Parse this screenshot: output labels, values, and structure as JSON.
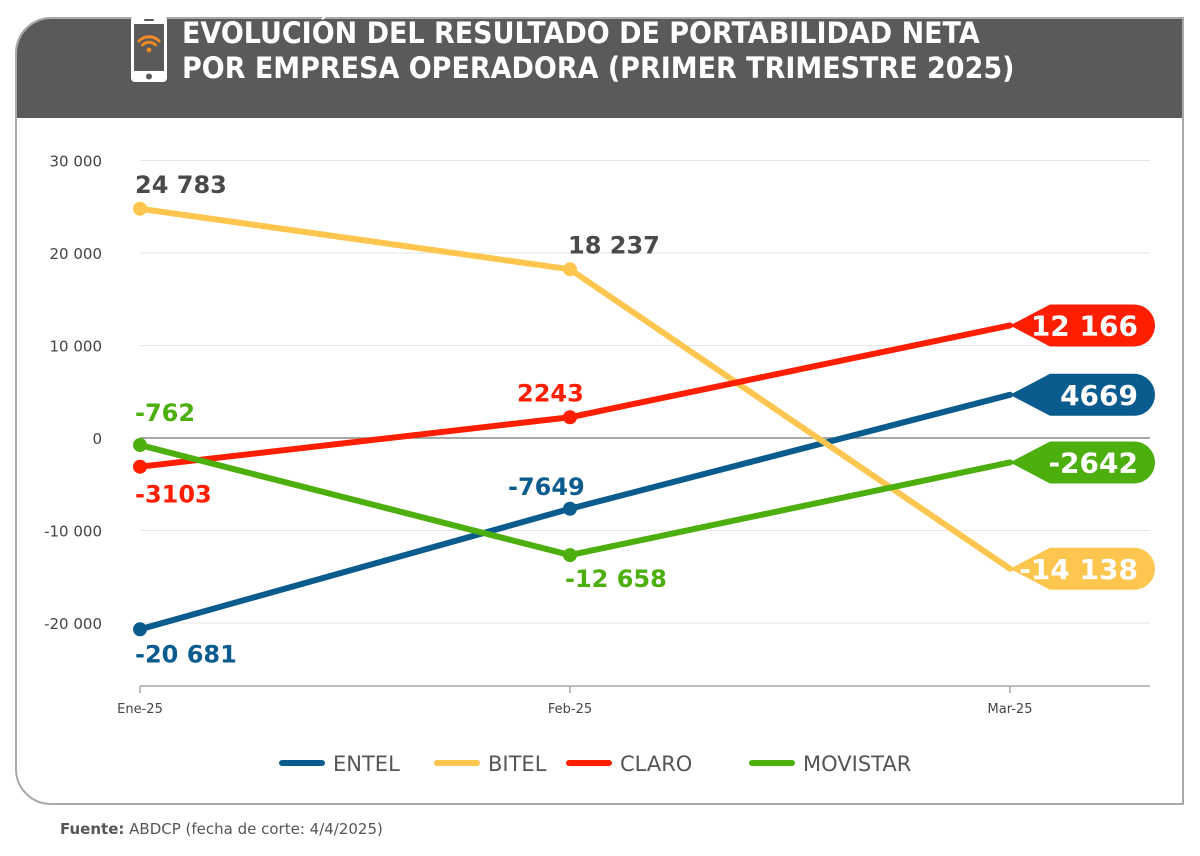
{
  "header": {
    "icon": "smartphone-wifi-icon",
    "title_line1": "EVOLUCIÓN DEL RESULTADO DE PORTABILIDAD NETA",
    "title_line2": "POR EMPRESA OPERADORA (PRIMER TRIMESTRE 2025)"
  },
  "footer": {
    "source_label": "Fuente:",
    "source_text": " ABDCP (fecha de corte: 4/4/2025)"
  },
  "colors": {
    "header_bg": "#5a5a5a",
    "icon_accent": "#f08a24"
  },
  "chart_data": {
    "type": "line",
    "title": "EVOLUCIÓN DEL RESULTADO DE PORTABILIDAD NETA POR EMPRESA OPERADORA (PRIMER TRIMESTRE 2025)",
    "xlabel": "",
    "ylabel": "",
    "categories": [
      "Ene-25",
      "Feb-25",
      "Mar-25"
    ],
    "ylim": [
      -27000,
      30000
    ],
    "yticks": [
      30000,
      20000,
      10000,
      0,
      -10000,
      -20000
    ],
    "ytick_labels": [
      "30 000",
      "20 000",
      "10 000",
      "0",
      "-10 000",
      "-20 000"
    ],
    "grid": true,
    "legend_position": "bottom-center",
    "series": [
      {
        "name": "ENTEL",
        "color": "#0a5c8e",
        "values": [
          -20681,
          -7649,
          4669
        ],
        "labels": [
          "-20 681",
          "-7649",
          "4669"
        ],
        "label_color": "#0a5c8e"
      },
      {
        "name": "BITEL",
        "color": "#ffc64f",
        "values": [
          24783,
          18237,
          -14138
        ],
        "labels": [
          "24 783",
          "18 237",
          "-14 138"
        ],
        "label_color": "#4a4a4a"
      },
      {
        "name": "CLARO",
        "color": "#ff1e00",
        "values": [
          -3103,
          2243,
          12166
        ],
        "labels": [
          "-3103",
          "2243",
          "12 166"
        ],
        "label_color": "#ff1e00"
      },
      {
        "name": "MOVISTAR",
        "color": "#4caf0e",
        "values": [
          -762,
          -12658,
          -2642
        ],
        "labels": [
          "-762",
          "-12 658",
          "-2642"
        ],
        "label_color": "#4caf0e"
      }
    ]
  }
}
